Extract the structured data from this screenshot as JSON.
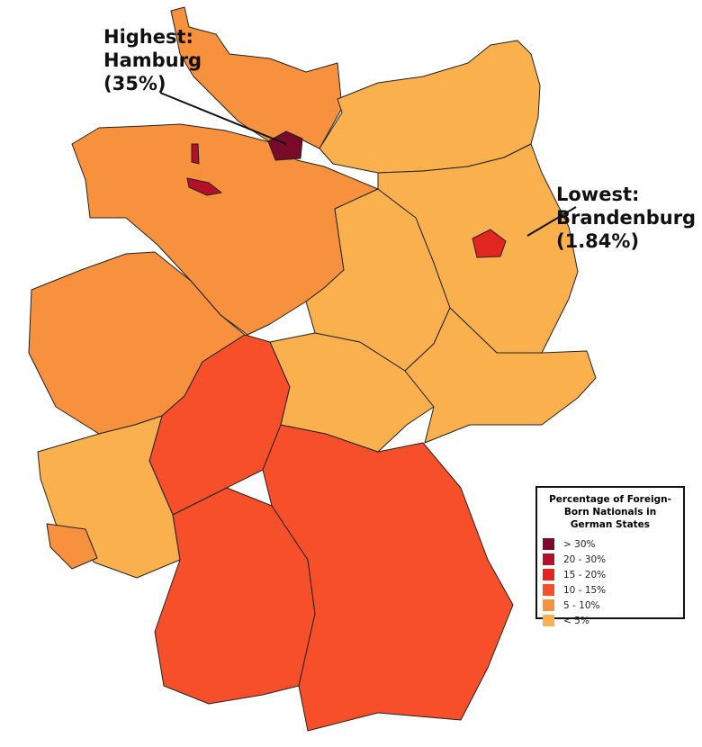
{
  "annotations": {
    "highest": {
      "line1": "Highest:",
      "line2": "Hamburg",
      "line3": "(35%)"
    },
    "lowest": {
      "line1": "Lowest:",
      "line2": "Brandenburg",
      "line3": "(1.84%)"
    }
  },
  "legend": {
    "title": "Percentage of Foreign-Born Nationals in German States",
    "items": [
      {
        "label": "> 30%",
        "color": "#7a0a2a"
      },
      {
        "label": "20 - 30%",
        "color": "#b5102a"
      },
      {
        "label": "15 - 20%",
        "color": "#e0261f"
      },
      {
        "label": "10 - 15%",
        "color": "#f64f2a"
      },
      {
        "label": "5 - 10%",
        "color": "#f8913e"
      },
      {
        "label": "< 5%",
        "color": "#fbb04e"
      }
    ]
  },
  "state_classes": {
    "schleswig-holstein": "5 - 10%",
    "hamburg": "> 30%",
    "bremen": "20 - 30%",
    "lower-saxony": "5 - 10%",
    "mecklenburg-vorpommern": "< 5%",
    "brandenburg": "< 5%",
    "berlin": "15 - 20%",
    "saxony-anhalt": "< 5%",
    "saxony": "< 5%",
    "thuringia": "< 5%",
    "north-rhine-westphalia": "5 - 10%",
    "hesse": "10 - 15%",
    "rhineland-palatinate": "< 5%",
    "saarland": "5 - 10%",
    "baden-wuerttemberg": "10 - 15%",
    "bavaria": "10 - 15%"
  }
}
